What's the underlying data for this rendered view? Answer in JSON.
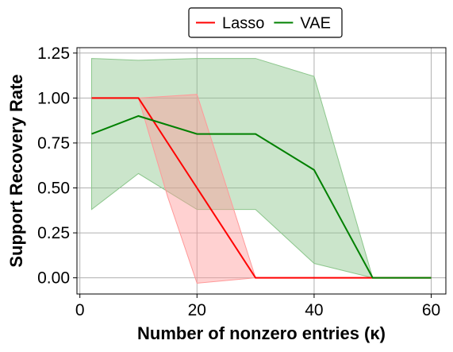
{
  "chart_data": {
    "type": "line",
    "xlabel": "Number of nonzero entries (κ)",
    "ylabel": "Support Recovery Rate",
    "xlim": [
      -0.5,
      62.5
    ],
    "ylim": [
      -0.09,
      1.28
    ],
    "xticks": [
      0,
      20,
      40,
      60
    ],
    "xtick_labels": [
      "0",
      "20",
      "40",
      "60"
    ],
    "yticks": [
      0.0,
      0.25,
      0.5,
      0.75,
      1.0,
      1.25
    ],
    "ytick_labels": [
      "0.00",
      "0.25",
      "0.50",
      "0.75",
      "1.00",
      "1.25"
    ],
    "grid": true,
    "legend_position": "top-center (outside)",
    "x": [
      2,
      10,
      20,
      30,
      40,
      50,
      60
    ],
    "series": [
      {
        "name": "Lasso",
        "color": "#ff0000",
        "band_color": "#ff9999",
        "values": [
          1.0,
          1.0,
          0.5,
          0.0,
          0.0,
          0.0,
          0.0
        ],
        "band_x": [
          10,
          15,
          20,
          30,
          40,
          50,
          60
        ],
        "lower": [
          1.0,
          0.45,
          -0.03,
          0.0,
          0.0,
          0.0,
          0.0
        ],
        "upper": [
          1.0,
          1.01,
          1.02,
          0.0,
          0.0,
          0.0,
          0.0
        ]
      },
      {
        "name": "VAE",
        "color": "#008000",
        "band_color": "#8cc68c",
        "values": [
          0.8,
          0.9,
          0.8,
          0.8,
          0.6,
          0.0,
          0.0
        ],
        "band_x": [
          2,
          10,
          20,
          30,
          40,
          50,
          60
        ],
        "lower": [
          0.38,
          0.58,
          0.38,
          0.38,
          0.08,
          0.0,
          0.0
        ],
        "upper": [
          1.22,
          1.21,
          1.22,
          1.22,
          1.12,
          0.0,
          0.0
        ]
      }
    ]
  }
}
